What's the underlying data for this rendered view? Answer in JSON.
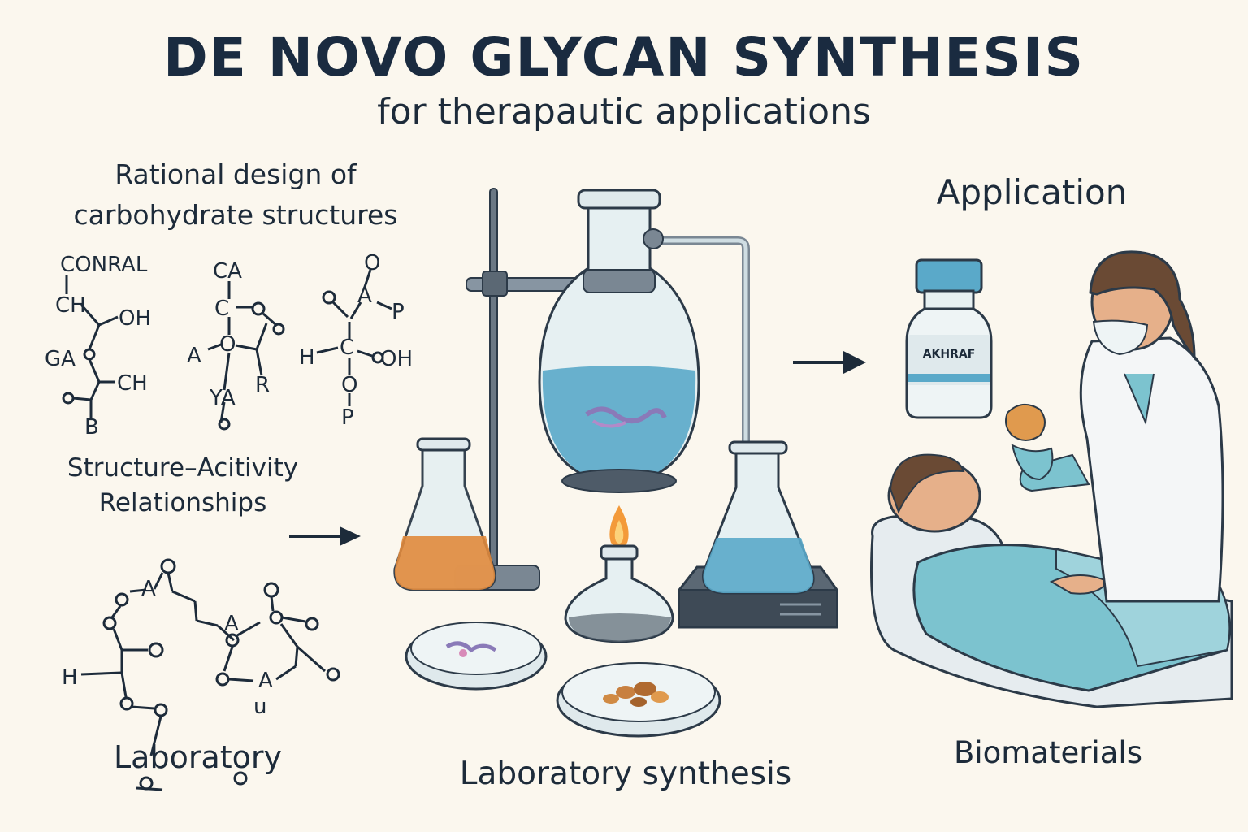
{
  "header": {
    "title": "DE NOVO GLYCAN SYNTHESIS",
    "subtitle": "for therapautic applications"
  },
  "left_panel": {
    "heading_line1": "Rational design of",
    "heading_line2": "carbohydrate structures",
    "sar_line1": "Structure–Acitivity",
    "sar_line2": "Relationships",
    "lab_label": "Laboratory",
    "structure1": {
      "a": "CONRAL",
      "b": "CH",
      "c": "OH",
      "d": "GA",
      "e": "CH",
      "f": "B"
    },
    "structure2": {
      "a": "CA",
      "b": "C",
      "c": "A",
      "d": "O",
      "e": "YA",
      "f": "R"
    },
    "structure3": {
      "a": "O",
      "b": "A",
      "c": "P",
      "d": "H",
      "e": "C",
      "f": "OH",
      "g": "O",
      "h": "P"
    },
    "structure4": {
      "a": "A",
      "b": "A",
      "c": "H",
      "d": "A",
      "e": "u"
    }
  },
  "center_panel": {
    "label": "Laboratory synthesis"
  },
  "right_panel": {
    "heading": "Application",
    "vial_label": "AKHRAF",
    "label": "Biomaterials"
  },
  "colors": {
    "ink": "#1d2b3a",
    "background": "#fbf7ee",
    "glass": "#e6f0f2",
    "blue_liquid": "#5aa9c9",
    "orange_liquid": "#e08a3c",
    "flame": "#f39a3a",
    "teal": "#7cc3cf"
  }
}
